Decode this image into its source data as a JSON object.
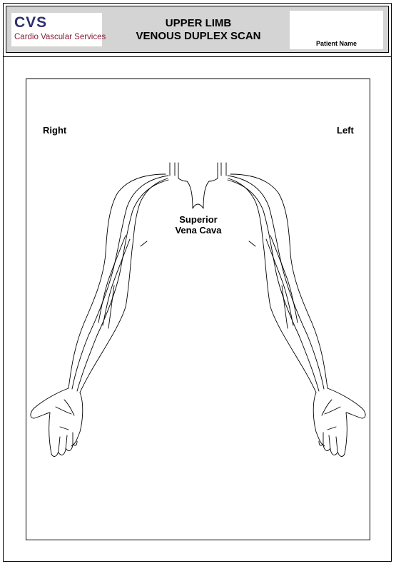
{
  "logo": {
    "abbr": "CVS",
    "name": "Cardio Vascular Services"
  },
  "header": {
    "title_line1": "UPPER LIMB",
    "title_line2": "VENOUS DUPLEX SCAN",
    "patient_label": "Patient Name"
  },
  "diagram": {
    "right_label": "Right",
    "left_label": "Left",
    "svc_line1": "Superior",
    "svc_line2": "Vena Cava"
  }
}
